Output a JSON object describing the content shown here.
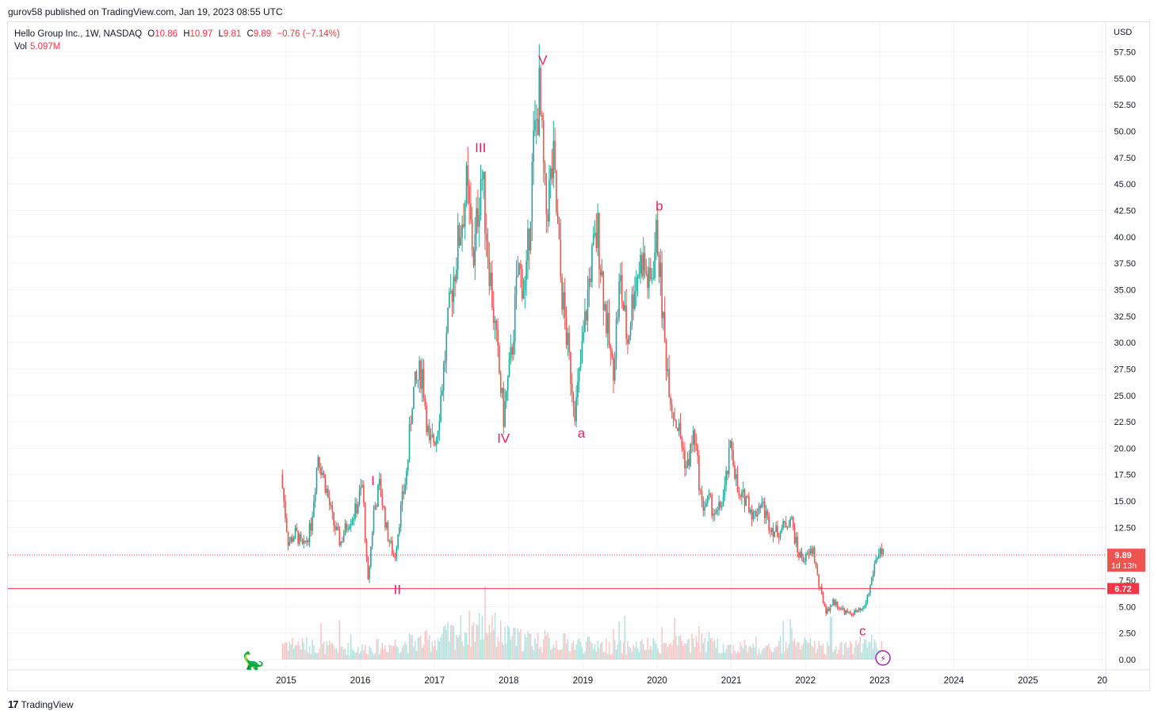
{
  "publisher": "gurov58 published on TradingView.com, Jan 19, 2023 08:55 UTC",
  "footer": {
    "brand": "TradingView",
    "logo": "17"
  },
  "legend": {
    "symbol": "Hello Group Inc., 1W, NASDAQ",
    "o_label": "O",
    "o_value": "10.86",
    "h_label": "H",
    "h_value": "10.97",
    "l_label": "L",
    "l_value": "9.81",
    "c_label": "C",
    "c_value": "9.89",
    "change": "−0.76 (−7.14%)",
    "vol_label": "Vol",
    "vol_value": "5.097M"
  },
  "chart_data": {
    "type": "candlestick",
    "title": "Hello Group Inc., 1W, NASDAQ",
    "currency": "USD",
    "x_ticks": [
      "2015",
      "2016",
      "2017",
      "2018",
      "2019",
      "2020",
      "2021",
      "2022",
      "2023",
      "2024",
      "2025",
      "20"
    ],
    "y_ticks": [
      "57.50",
      "55.00",
      "52.50",
      "50.00",
      "47.50",
      "45.00",
      "42.50",
      "40.00",
      "37.50",
      "35.00",
      "32.50",
      "30.00",
      "27.50",
      "25.00",
      "22.50",
      "20.00",
      "17.50",
      "15.00",
      "12.50",
      "7.50",
      "5.00",
      "2.50",
      "0.00"
    ],
    "ylim": [
      0,
      59
    ],
    "grid": true,
    "colors": {
      "up": "#26a69a",
      "down": "#ef5350",
      "wave": "#e91e63",
      "hline": "#f23645"
    },
    "price_path": [
      [
        2014.95,
        17.5
      ],
      [
        2015.05,
        11.0
      ],
      [
        2015.15,
        12.0
      ],
      [
        2015.25,
        10.5
      ],
      [
        2015.35,
        12.5
      ],
      [
        2015.45,
        19.5
      ],
      [
        2015.55,
        16.5
      ],
      [
        2015.65,
        13.0
      ],
      [
        2015.75,
        11.0
      ],
      [
        2015.85,
        13.0
      ],
      [
        2015.95,
        14.0
      ],
      [
        2016.05,
        16.5
      ],
      [
        2016.12,
        7.0
      ],
      [
        2016.2,
        14.0
      ],
      [
        2016.28,
        16.5
      ],
      [
        2016.38,
        12.0
      ],
      [
        2016.48,
        9.5
      ],
      [
        2016.55,
        13.5
      ],
      [
        2016.65,
        18.0
      ],
      [
        2016.72,
        25.0
      ],
      [
        2016.85,
        27.5
      ],
      [
        2016.95,
        20.0
      ],
      [
        2017.05,
        21.5
      ],
      [
        2017.15,
        28.0
      ],
      [
        2017.25,
        35.0
      ],
      [
        2017.35,
        40.0
      ],
      [
        2017.45,
        44.5
      ],
      [
        2017.55,
        38.0
      ],
      [
        2017.65,
        46.5
      ],
      [
        2017.75,
        38.0
      ],
      [
        2017.85,
        30.0
      ],
      [
        2017.95,
        23.0
      ],
      [
        2018.05,
        28.5
      ],
      [
        2018.15,
        37.0
      ],
      [
        2018.25,
        35.0
      ],
      [
        2018.35,
        48.0
      ],
      [
        2018.43,
        53.5
      ],
      [
        2018.52,
        42.0
      ],
      [
        2018.62,
        47.0
      ],
      [
        2018.72,
        36.0
      ],
      [
        2018.82,
        29.0
      ],
      [
        2018.92,
        23.5
      ],
      [
        2019.02,
        30.0
      ],
      [
        2019.12,
        37.0
      ],
      [
        2019.22,
        40.5
      ],
      [
        2019.32,
        33.0
      ],
      [
        2019.42,
        27.0
      ],
      [
        2019.52,
        36.0
      ],
      [
        2019.62,
        30.0
      ],
      [
        2019.72,
        36.0
      ],
      [
        2019.82,
        38.0
      ],
      [
        2019.92,
        35.0
      ],
      [
        2020.02,
        40.5
      ],
      [
        2020.12,
        30.0
      ],
      [
        2020.22,
        24.0
      ],
      [
        2020.32,
        21.5
      ],
      [
        2020.42,
        18.0
      ],
      [
        2020.52,
        21.5
      ],
      [
        2020.62,
        14.5
      ],
      [
        2020.72,
        15.0
      ],
      [
        2020.82,
        13.5
      ],
      [
        2020.92,
        15.5
      ],
      [
        2021.02,
        20.5
      ],
      [
        2021.12,
        15.0
      ],
      [
        2021.22,
        15.5
      ],
      [
        2021.32,
        13.5
      ],
      [
        2021.42,
        15.0
      ],
      [
        2021.52,
        13.0
      ],
      [
        2021.62,
        12.0
      ],
      [
        2021.72,
        12.5
      ],
      [
        2021.82,
        13.5
      ],
      [
        2021.92,
        10.0
      ],
      [
        2022.02,
        9.5
      ],
      [
        2022.12,
        10.5
      ],
      [
        2022.2,
        7.0
      ],
      [
        2022.3,
        4.5
      ],
      [
        2022.4,
        5.5
      ],
      [
        2022.5,
        4.8
      ],
      [
        2022.6,
        4.3
      ],
      [
        2022.7,
        4.5
      ],
      [
        2022.8,
        4.7
      ],
      [
        2022.88,
        6.5
      ],
      [
        2022.95,
        9.0
      ],
      [
        2023.02,
        10.5
      ],
      [
        2023.05,
        9.89
      ]
    ],
    "volume_profile": [
      [
        2014.95,
        0.5
      ],
      [
        2015.5,
        0.35
      ],
      [
        2016.0,
        0.3
      ],
      [
        2016.5,
        0.45
      ],
      [
        2017.0,
        0.55
      ],
      [
        2017.4,
        0.85
      ],
      [
        2017.7,
        1.0
      ],
      [
        2018.0,
        0.6
      ],
      [
        2018.4,
        0.55
      ],
      [
        2018.9,
        0.45
      ],
      [
        2019.5,
        0.35
      ],
      [
        2020.0,
        0.4
      ],
      [
        2020.5,
        0.45
      ],
      [
        2021.0,
        0.35
      ],
      [
        2021.5,
        0.3
      ],
      [
        2022.0,
        0.4
      ],
      [
        2022.5,
        0.35
      ],
      [
        2023.0,
        0.5
      ],
      [
        2023.05,
        0.45
      ]
    ],
    "last_price": {
      "value": 9.89,
      "label": "9.89",
      "countdown": "1d 13h"
    },
    "support_line": {
      "value": 6.72,
      "label": "6.72"
    },
    "wave_labels": [
      {
        "text": "I",
        "x": 2016.17,
        "y": 16.5
      },
      {
        "text": "II",
        "x": 2016.5,
        "y": 6.2
      },
      {
        "text": "III",
        "x": 2017.62,
        "y": 48.0
      },
      {
        "text": "IV",
        "x": 2017.93,
        "y": 20.5
      },
      {
        "text": "V",
        "x": 2018.46,
        "y": 56.3
      },
      {
        "text": "a",
        "x": 2018.98,
        "y": 21.0
      },
      {
        "text": "b",
        "x": 2020.03,
        "y": 42.5
      },
      {
        "text": "c",
        "x": 2022.77,
        "y": 2.3
      }
    ]
  }
}
